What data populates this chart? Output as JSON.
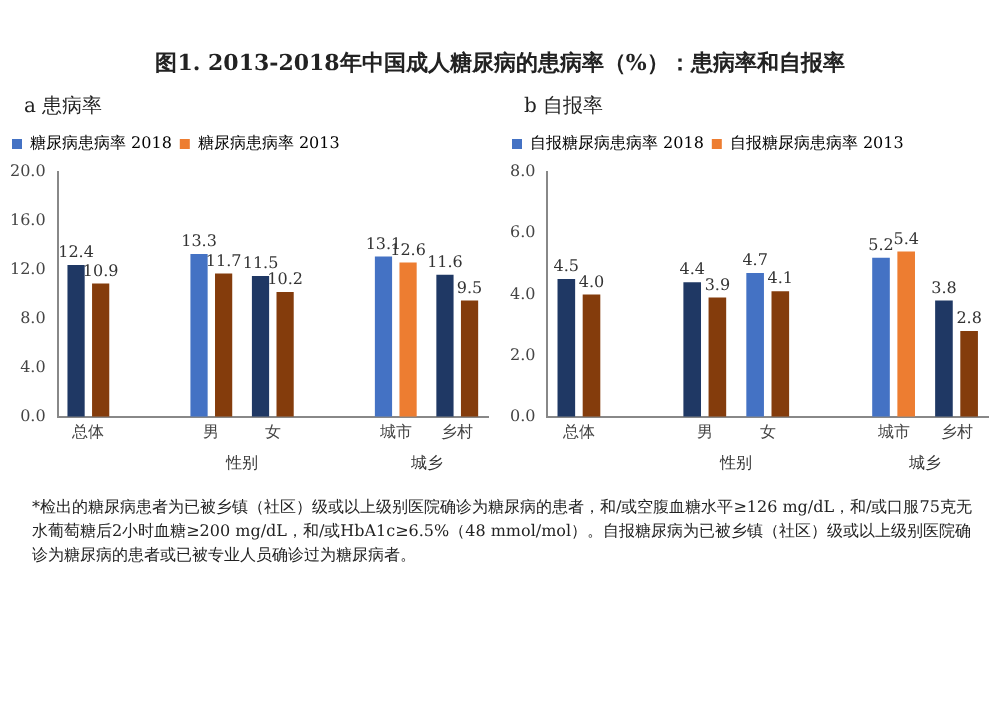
{
  "chart_data": [
    {
      "type": "bar",
      "title": "图1. 2013-2018年中国成人糖尿病的患病率（%）：患病率和自报率",
      "subtitle": "a   患病率",
      "categories": [
        "总体",
        null,
        "男",
        "女",
        null,
        "城市",
        "乡村"
      ],
      "series": [
        {
          "name": "糖尿病患病率 2018",
          "color": "#4472c4",
          "colors": [
            "#1f3864",
            null,
            "#4472c4",
            "#1f3864",
            null,
            "#4472c4",
            "#1f3864"
          ],
          "values": [
            12.4,
            null,
            13.3,
            11.5,
            null,
            13.1,
            11.6
          ],
          "value_labels": [
            "12.4",
            null,
            "13.3",
            "11.5",
            null,
            "13.1",
            "11.6"
          ]
        },
        {
          "name": "糖尿病患病率 2013",
          "color": "#ed7d31",
          "colors": [
            "#843c0c",
            null,
            "#843c0c",
            "#843c0c",
            null,
            "#ed7d31",
            "#843c0c"
          ],
          "values": [
            10.9,
            null,
            11.7,
            10.2,
            null,
            12.6,
            9.5
          ],
          "value_labels": [
            "10.9",
            null,
            "11.7",
            "10.2",
            null,
            "12.6",
            "9.5"
          ]
        }
      ],
      "ylim": [
        0,
        20
      ],
      "yticks": [
        {
          "value": 0,
          "label": "0.0"
        },
        {
          "value": 4,
          "label": "4.0"
        },
        {
          "value": 8,
          "label": "8.0"
        },
        {
          "value": 12,
          "label": "12.0"
        },
        {
          "value": 16,
          "label": "16.0"
        },
        {
          "value": 20,
          "label": "20.0"
        }
      ],
      "grid": false,
      "legend": "top left",
      "annotations": [
        "性别",
        "城乡"
      ]
    },
    {
      "type": "bar",
      "subtitle": "b   自报率",
      "categories": [
        "总体",
        null,
        "男",
        "女",
        null,
        "城市",
        "乡村"
      ],
      "series": [
        {
          "name": "自报糖尿病患病率 2018",
          "color": "#4472c4",
          "colors": [
            "#1f3864",
            null,
            "#1f3864",
            "#4472c4",
            null,
            "#4472c4",
            "#1f3864"
          ],
          "values": [
            4.5,
            null,
            4.4,
            4.7,
            null,
            5.2,
            3.8
          ],
          "value_labels": [
            "4.5",
            null,
            "4.4",
            "4.7",
            null,
            "5.2",
            "3.8"
          ]
        },
        {
          "name": "自报糖尿病患病率 2013",
          "color": "#ed7d31",
          "colors": [
            "#843c0c",
            null,
            "#843c0c",
            "#843c0c",
            null,
            "#ed7d31",
            "#843c0c"
          ],
          "values": [
            4.0,
            null,
            3.9,
            4.1,
            null,
            5.4,
            2.8
          ],
          "value_labels": [
            "4.0",
            null,
            "3.9",
            "4.1",
            null,
            "5.4",
            "2.8"
          ]
        }
      ],
      "ylim": [
        0,
        8
      ],
      "yticks": [
        {
          "value": 0,
          "label": "0.0"
        },
        {
          "value": 2,
          "label": "2.0"
        },
        {
          "value": 4,
          "label": "4.0"
        },
        {
          "value": 6,
          "label": "6.0"
        },
        {
          "value": 8,
          "label": "8.0"
        }
      ],
      "grid": false,
      "legend": "top left",
      "annotations": [
        "性别",
        "城乡",
        "*检出的糖尿病患者为已被乡镇（社区）级或以上级别医院确诊为糖尿病的患者，和/或空腹血糖水平≥126 mg/dL，和/或口服75克无水葡萄糖后2小时血糖≥200 mg/dL，和/或HbA1c≥6.5%（48 mmol/mol）。自报糖尿病为已被乡镇（社区）级或以上级别医院确诊为糖尿病的患者或已被专业人员确诊过为糖尿病者。"
      ]
    }
  ]
}
